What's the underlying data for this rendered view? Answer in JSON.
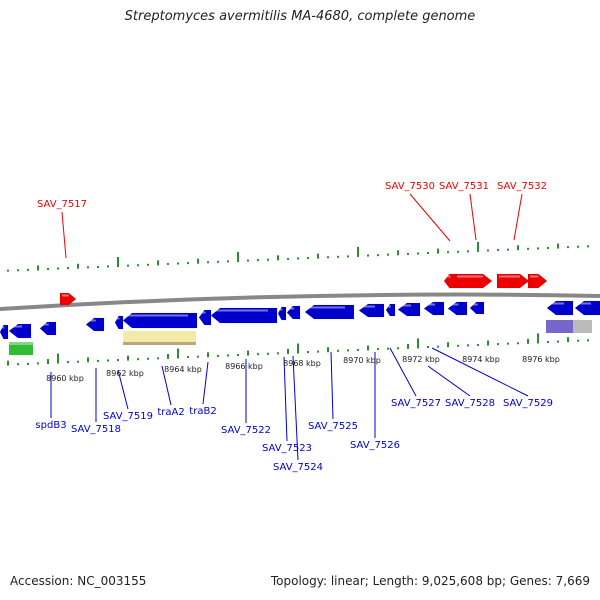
{
  "title": "Streptomyces avermitilis MA-4680, complete genome",
  "footer": {
    "accession": "Accession: NC_003155",
    "stats": "Topology: linear; Length: 9,025,608 bp; Genes: 7,669"
  },
  "colors": {
    "top_strand": "#ee0000",
    "bottom_strand": "#0000cc",
    "backbone": "#888888",
    "gc_ticks": "#2e8b2e",
    "green_feature": "#33bb33",
    "yellow_feature": "#f3e9a8",
    "purple_feature": "#7766cc"
  },
  "scale_labels": [
    "8960 kbp",
    "8962 kbp",
    "8964 kbp",
    "8966 kbp",
    "8968 kbp",
    "8970 kbp",
    "8972 kbp",
    "8974 kbp",
    "8976 kbp"
  ],
  "top_labels": [
    "SAV_7517",
    "SAV_7530",
    "SAV_7531",
    "SAV_7532"
  ],
  "bottom_labels": [
    "spdB3",
    "SAV_7518",
    "SAV_7519",
    "traA2",
    "traB2",
    "SAV_7522",
    "SAV_7523",
    "SAV_7524",
    "SAV_7525",
    "SAV_7526",
    "SAV_7527",
    "SAV_7528",
    "SAV_7529"
  ]
}
